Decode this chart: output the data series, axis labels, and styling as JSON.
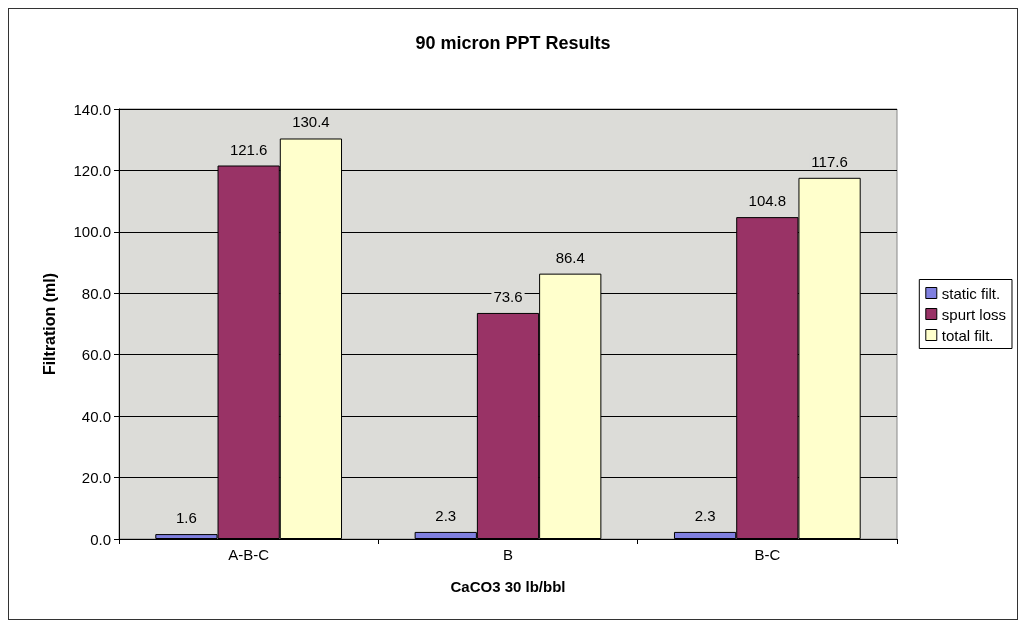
{
  "chart_data": {
    "type": "bar",
    "title": "90 micron PPT Results",
    "xlabel": "CaCO3 30 lb/bbl",
    "ylabel": "Filtration (ml)",
    "categories": [
      "A-B-C",
      "B",
      "B-C"
    ],
    "series": [
      {
        "name": "static filt.",
        "color": "#8080e0",
        "values": [
          1.6,
          2.3,
          2.3
        ]
      },
      {
        "name": "spurt loss",
        "color": "#993366",
        "values": [
          121.6,
          73.6,
          104.8
        ]
      },
      {
        "name": "total filt.",
        "color": "#ffffcc",
        "values": [
          130.4,
          86.4,
          117.6
        ]
      }
    ],
    "ylim": [
      0,
      140
    ],
    "yticks": [
      {
        "value": 0,
        "label": "0.0"
      },
      {
        "value": 20,
        "label": "20.0"
      },
      {
        "value": 40,
        "label": "40.0"
      },
      {
        "value": 60,
        "label": "60.0"
      },
      {
        "value": 80,
        "label": "80.0"
      },
      {
        "value": 100,
        "label": "100.0"
      },
      {
        "value": 120,
        "label": "120.0"
      },
      {
        "value": 140,
        "label": "140.0"
      }
    ],
    "grid": "y",
    "legend": "right",
    "data_labels": true
  }
}
